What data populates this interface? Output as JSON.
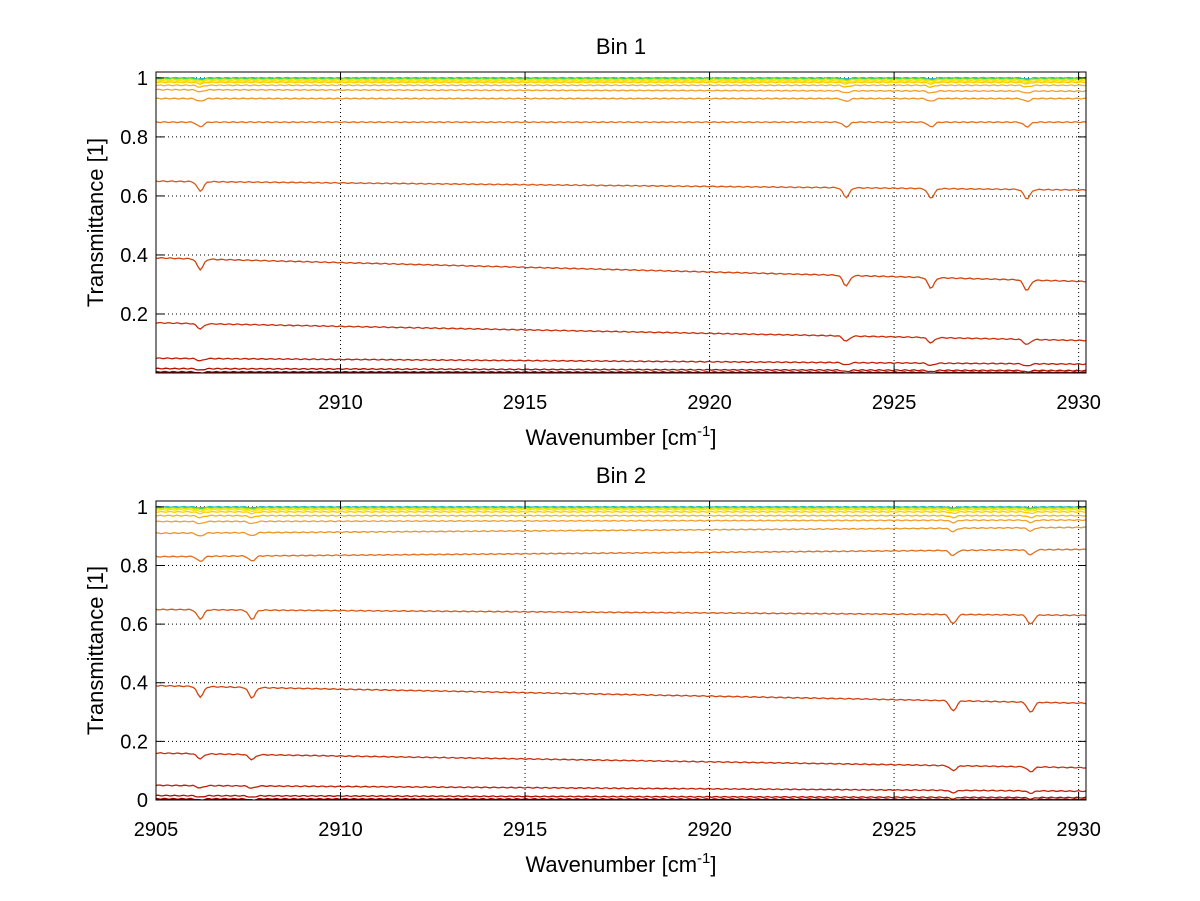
{
  "chart_data": [
    {
      "type": "line",
      "title": "Bin 1",
      "xlabel": "Wavenumber [cm",
      "xlabel_sup": "-1",
      "xlabel_end": "]",
      "ylabel": "Transmittance [1]",
      "xlim": [
        2905,
        2930.2
      ],
      "ylim": [
        0,
        1.02
      ],
      "xticks": [
        2910,
        2915,
        2920,
        2925,
        2930
      ],
      "xtick_labels": [
        "2910",
        "2915",
        "2920",
        "2925",
        "2930"
      ],
      "yticks": [
        0.2,
        0.4,
        0.6,
        0.8,
        1
      ],
      "ytick_labels": [
        "0.2",
        "0.4",
        "0.6",
        "0.8",
        "1"
      ],
      "grid": true,
      "dips": [
        2906.2,
        2923.7,
        2926.0,
        2928.6
      ],
      "series": [
        {
          "start": 1.0,
          "end": 1.0,
          "color": "#1fb6e6"
        },
        {
          "start": 0.998,
          "end": 0.998,
          "color": "#40d060"
        },
        {
          "start": 0.995,
          "end": 0.995,
          "color": "#d6e600"
        },
        {
          "start": 0.99,
          "end": 0.99,
          "color": "#ffe000"
        },
        {
          "start": 0.985,
          "end": 0.985,
          "color": "#ffcc00"
        },
        {
          "start": 0.975,
          "end": 0.975,
          "color": "#f5b800"
        },
        {
          "start": 0.96,
          "end": 0.955,
          "color": "#f0a030"
        },
        {
          "start": 0.93,
          "end": 0.93,
          "color": "#e8962a"
        },
        {
          "start": 0.85,
          "end": 0.85,
          "color": "#e07020"
        },
        {
          "start": 0.65,
          "end": 0.62,
          "color": "#d85a18"
        },
        {
          "start": 0.39,
          "end": 0.31,
          "color": "#d04410"
        },
        {
          "start": 0.17,
          "end": 0.11,
          "color": "#c8300c"
        },
        {
          "start": 0.05,
          "end": 0.03,
          "color": "#c02008"
        },
        {
          "start": 0.015,
          "end": 0.008,
          "color": "#b01000"
        },
        {
          "start": 0.004,
          "end": 0.002,
          "color": "#a00000"
        },
        {
          "start": 0.001,
          "end": 0.0005,
          "color": "#8b0000"
        }
      ]
    },
    {
      "type": "line",
      "title": "Bin 2",
      "xlabel": "Wavenumber [cm",
      "xlabel_sup": "-1",
      "xlabel_end": "]",
      "ylabel": "Transmittance [1]",
      "xlim": [
        2905,
        2930.2
      ],
      "ylim": [
        0,
        1.02
      ],
      "xticks": [
        2905,
        2910,
        2915,
        2920,
        2925,
        2930
      ],
      "xtick_labels": [
        "2905",
        "2910",
        "2915",
        "2920",
        "2925",
        "2930"
      ],
      "yticks": [
        0,
        0.2,
        0.4,
        0.6,
        0.8,
        1
      ],
      "ytick_labels": [
        "0",
        "0.2",
        "0.4",
        "0.6",
        "0.8",
        "1"
      ],
      "grid": true,
      "dips": [
        2906.2,
        2907.6,
        2926.6,
        2928.7
      ],
      "series": [
        {
          "start": 1.0,
          "end": 1.0,
          "color": "#1fb6e6"
        },
        {
          "start": 0.998,
          "end": 0.998,
          "color": "#40d060"
        },
        {
          "start": 0.995,
          "end": 0.995,
          "color": "#d6e600"
        },
        {
          "start": 0.99,
          "end": 0.99,
          "color": "#ffe000"
        },
        {
          "start": 0.983,
          "end": 0.983,
          "color": "#ffcc00"
        },
        {
          "start": 0.97,
          "end": 0.97,
          "color": "#f5b800"
        },
        {
          "start": 0.95,
          "end": 0.955,
          "color": "#f0a030"
        },
        {
          "start": 0.91,
          "end": 0.93,
          "color": "#e8962a"
        },
        {
          "start": 0.83,
          "end": 0.855,
          "color": "#e07020"
        },
        {
          "start": 0.65,
          "end": 0.63,
          "color": "#d85a18"
        },
        {
          "start": 0.39,
          "end": 0.33,
          "color": "#d04410"
        },
        {
          "start": 0.16,
          "end": 0.11,
          "color": "#c8300c"
        },
        {
          "start": 0.05,
          "end": 0.03,
          "color": "#c02008"
        },
        {
          "start": 0.015,
          "end": 0.008,
          "color": "#b01000"
        },
        {
          "start": 0.004,
          "end": 0.002,
          "color": "#a00000"
        },
        {
          "start": 0.001,
          "end": 0.0005,
          "color": "#8b0000"
        }
      ]
    }
  ]
}
